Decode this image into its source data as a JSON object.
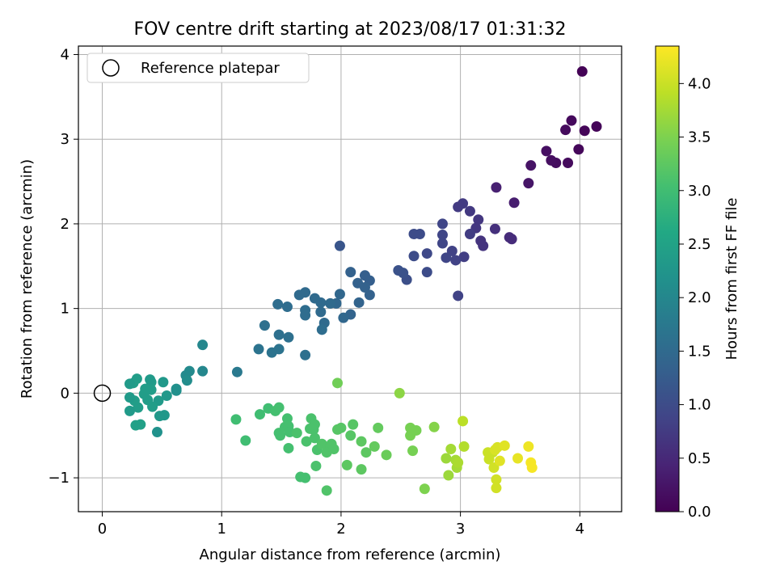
{
  "chart_data": {
    "type": "scatter",
    "title": "FOV centre drift starting at 2023/08/17 01:31:32",
    "xlabel": "Angular distance from reference (arcmin)",
    "ylabel": "Rotation from reference (arcmin)",
    "xlim": [
      -0.2,
      4.35
    ],
    "ylim": [
      -1.4,
      4.1
    ],
    "x_ticks": [
      0,
      1,
      2,
      3,
      4
    ],
    "y_ticks": [
      -1,
      0,
      1,
      2,
      3,
      4
    ],
    "x_tick_labels": [
      "0",
      "1",
      "2",
      "3",
      "4"
    ],
    "y_tick_labels": [
      "−1",
      "0",
      "1",
      "2",
      "3",
      "4"
    ],
    "grid": true,
    "legend": {
      "position": "top-left",
      "label": "Reference platepar"
    },
    "reference_point": {
      "x": 0,
      "y": 0
    },
    "colorbar": {
      "label": "Hours from first FF file",
      "colormap": "viridis",
      "range": [
        0.0,
        4.35
      ],
      "ticks": [
        0.0,
        0.5,
        1.0,
        1.5,
        2.0,
        2.5,
        3.0,
        3.5,
        4.0
      ],
      "tick_labels": [
        "0.0",
        "0.5",
        "1.0",
        "1.5",
        "2.0",
        "2.5",
        "3.0",
        "3.5",
        "4.0"
      ]
    },
    "points": [
      {
        "x": 4.02,
        "y": 3.8,
        "h": 0.03
      },
      {
        "x": 4.14,
        "y": 3.15,
        "h": 0.05
      },
      {
        "x": 4.04,
        "y": 3.1,
        "h": 0.05
      },
      {
        "x": 3.99,
        "y": 2.88,
        "h": 0.08
      },
      {
        "x": 3.93,
        "y": 3.22,
        "h": 0.1
      },
      {
        "x": 3.88,
        "y": 3.11,
        "h": 0.12
      },
      {
        "x": 3.9,
        "y": 2.72,
        "h": 0.12
      },
      {
        "x": 3.8,
        "y": 2.72,
        "h": 0.15
      },
      {
        "x": 3.76,
        "y": 2.75,
        "h": 0.17
      },
      {
        "x": 3.72,
        "y": 2.86,
        "h": 0.18
      },
      {
        "x": 3.59,
        "y": 2.69,
        "h": 0.22
      },
      {
        "x": 3.57,
        "y": 2.48,
        "h": 0.25
      },
      {
        "x": 3.45,
        "y": 2.25,
        "h": 0.35
      },
      {
        "x": 3.3,
        "y": 2.43,
        "h": 0.4
      },
      {
        "x": 3.43,
        "y": 1.82,
        "h": 0.55
      },
      {
        "x": 3.41,
        "y": 1.84,
        "h": 0.55
      },
      {
        "x": 3.29,
        "y": 1.94,
        "h": 0.6
      },
      {
        "x": 3.19,
        "y": 1.74,
        "h": 0.65
      },
      {
        "x": 3.17,
        "y": 1.8,
        "h": 0.65
      },
      {
        "x": 3.15,
        "y": 2.05,
        "h": 0.7
      },
      {
        "x": 3.13,
        "y": 1.95,
        "h": 0.7
      },
      {
        "x": 3.08,
        "y": 2.15,
        "h": 0.72
      },
      {
        "x": 3.02,
        "y": 2.24,
        "h": 0.75
      },
      {
        "x": 2.98,
        "y": 2.2,
        "h": 0.75
      },
      {
        "x": 3.08,
        "y": 1.88,
        "h": 0.78
      },
      {
        "x": 3.03,
        "y": 1.61,
        "h": 0.8
      },
      {
        "x": 2.98,
        "y": 1.15,
        "h": 0.85
      },
      {
        "x": 2.96,
        "y": 1.57,
        "h": 0.85
      },
      {
        "x": 2.93,
        "y": 1.68,
        "h": 0.85
      },
      {
        "x": 2.88,
        "y": 1.6,
        "h": 0.9
      },
      {
        "x": 2.85,
        "y": 1.77,
        "h": 0.9
      },
      {
        "x": 2.85,
        "y": 1.87,
        "h": 0.9
      },
      {
        "x": 2.85,
        "y": 2.0,
        "h": 0.9
      },
      {
        "x": 2.72,
        "y": 1.65,
        "h": 0.95
      },
      {
        "x": 2.72,
        "y": 1.43,
        "h": 1.0
      },
      {
        "x": 2.66,
        "y": 1.88,
        "h": 1.0
      },
      {
        "x": 2.61,
        "y": 1.88,
        "h": 1.0
      },
      {
        "x": 2.61,
        "y": 1.62,
        "h": 1.0
      },
      {
        "x": 2.55,
        "y": 1.34,
        "h": 1.05
      },
      {
        "x": 2.52,
        "y": 1.42,
        "h": 1.1
      },
      {
        "x": 2.48,
        "y": 1.45,
        "h": 1.1
      },
      {
        "x": 2.24,
        "y": 1.33,
        "h": 1.3
      },
      {
        "x": 2.2,
        "y": 1.39,
        "h": 1.3
      },
      {
        "x": 2.24,
        "y": 1.16,
        "h": 1.35
      },
      {
        "x": 2.2,
        "y": 1.25,
        "h": 1.35
      },
      {
        "x": 2.14,
        "y": 1.3,
        "h": 1.35
      },
      {
        "x": 2.15,
        "y": 1.07,
        "h": 1.4
      },
      {
        "x": 2.08,
        "y": 0.93,
        "h": 1.4
      },
      {
        "x": 2.02,
        "y": 0.89,
        "h": 1.45
      },
      {
        "x": 2.08,
        "y": 1.43,
        "h": 1.35
      },
      {
        "x": 1.99,
        "y": 1.74,
        "h": 1.15
      },
      {
        "x": 1.99,
        "y": 1.17,
        "h": 1.45
      },
      {
        "x": 1.96,
        "y": 1.06,
        "h": 1.45
      },
      {
        "x": 1.91,
        "y": 1.06,
        "h": 1.5
      },
      {
        "x": 1.86,
        "y": 0.83,
        "h": 1.5
      },
      {
        "x": 1.84,
        "y": 0.75,
        "h": 1.55
      },
      {
        "x": 1.83,
        "y": 0.96,
        "h": 1.5
      },
      {
        "x": 1.83,
        "y": 1.07,
        "h": 1.5
      },
      {
        "x": 1.78,
        "y": 1.12,
        "h": 1.5
      },
      {
        "x": 1.7,
        "y": 1.19,
        "h": 1.5
      },
      {
        "x": 1.65,
        "y": 1.16,
        "h": 1.5
      },
      {
        "x": 1.7,
        "y": 0.98,
        "h": 1.55
      },
      {
        "x": 1.7,
        "y": 0.92,
        "h": 1.55
      },
      {
        "x": 1.7,
        "y": 0.45,
        "h": 1.6
      },
      {
        "x": 1.55,
        "y": 1.02,
        "h": 1.55
      },
      {
        "x": 1.47,
        "y": 1.05,
        "h": 1.55
      },
      {
        "x": 1.56,
        "y": 0.66,
        "h": 1.6
      },
      {
        "x": 1.48,
        "y": 0.69,
        "h": 1.6
      },
      {
        "x": 1.48,
        "y": 0.52,
        "h": 1.65
      },
      {
        "x": 1.42,
        "y": 0.48,
        "h": 1.65
      },
      {
        "x": 1.36,
        "y": 0.8,
        "h": 1.6
      },
      {
        "x": 1.31,
        "y": 0.52,
        "h": 1.65
      },
      {
        "x": 1.13,
        "y": 0.25,
        "h": 1.75
      },
      {
        "x": 0.84,
        "y": 0.57,
        "h": 2.0
      },
      {
        "x": 0.84,
        "y": 0.26,
        "h": 2.0
      },
      {
        "x": 0.73,
        "y": 0.26,
        "h": 2.05
      },
      {
        "x": 0.7,
        "y": 0.21,
        "h": 2.05
      },
      {
        "x": 0.71,
        "y": 0.15,
        "h": 2.1
      },
      {
        "x": 0.62,
        "y": 0.05,
        "h": 2.15
      },
      {
        "x": 0.62,
        "y": 0.03,
        "h": 2.15
      },
      {
        "x": 0.51,
        "y": 0.13,
        "h": 2.3
      },
      {
        "x": 0.54,
        "y": -0.03,
        "h": 2.3
      },
      {
        "x": 0.52,
        "y": -0.26,
        "h": 2.3
      },
      {
        "x": 0.48,
        "y": -0.27,
        "h": 2.3
      },
      {
        "x": 0.47,
        "y": -0.09,
        "h": 2.35
      },
      {
        "x": 0.46,
        "y": -0.46,
        "h": 2.2
      },
      {
        "x": 0.42,
        "y": -0.16,
        "h": 2.4
      },
      {
        "x": 0.41,
        "y": 0.13,
        "h": 2.4
      },
      {
        "x": 0.41,
        "y": 0.04,
        "h": 2.4
      },
      {
        "x": 0.4,
        "y": 0.16,
        "h": 2.35
      },
      {
        "x": 0.38,
        "y": -0.08,
        "h": 2.4
      },
      {
        "x": 0.36,
        "y": 0.05,
        "h": 2.4
      },
      {
        "x": 0.35,
        "y": -0.01,
        "h": 2.4
      },
      {
        "x": 0.32,
        "y": -0.37,
        "h": 2.45
      },
      {
        "x": 0.3,
        "y": -0.17,
        "h": 2.4
      },
      {
        "x": 0.29,
        "y": 0.17,
        "h": 2.4
      },
      {
        "x": 0.28,
        "y": -0.38,
        "h": 2.45
      },
      {
        "x": 0.27,
        "y": -0.09,
        "h": 2.4
      },
      {
        "x": 0.26,
        "y": 0.12,
        "h": 2.4
      },
      {
        "x": 0.23,
        "y": -0.05,
        "h": 2.35
      },
      {
        "x": 0.23,
        "y": 0.11,
        "h": 2.35
      },
      {
        "x": 0.23,
        "y": -0.21,
        "h": 2.35
      },
      {
        "x": 1.97,
        "y": 0.12,
        "h": 3.4
      },
      {
        "x": 2.49,
        "y": 0.0,
        "h": 3.6
      },
      {
        "x": 1.12,
        "y": -0.31,
        "h": 3.0
      },
      {
        "x": 1.2,
        "y": -0.56,
        "h": 3.0
      },
      {
        "x": 1.32,
        "y": -0.25,
        "h": 3.0
      },
      {
        "x": 1.39,
        "y": -0.18,
        "h": 3.0
      },
      {
        "x": 1.45,
        "y": -0.21,
        "h": 3.05
      },
      {
        "x": 1.48,
        "y": -0.17,
        "h": 3.05
      },
      {
        "x": 1.48,
        "y": -0.47,
        "h": 3.05
      },
      {
        "x": 1.49,
        "y": -0.5,
        "h": 3.05
      },
      {
        "x": 1.53,
        "y": -0.4,
        "h": 3.05
      },
      {
        "x": 1.55,
        "y": -0.3,
        "h": 3.05
      },
      {
        "x": 1.56,
        "y": -0.39,
        "h": 3.05
      },
      {
        "x": 1.56,
        "y": -0.65,
        "h": 3.05
      },
      {
        "x": 1.57,
        "y": -0.46,
        "h": 3.05
      },
      {
        "x": 1.63,
        "y": -0.47,
        "h": 3.1
      },
      {
        "x": 1.66,
        "y": -0.99,
        "h": 3.05
      },
      {
        "x": 1.7,
        "y": -1.0,
        "h": 3.05
      },
      {
        "x": 1.71,
        "y": -0.57,
        "h": 3.1
      },
      {
        "x": 1.74,
        "y": -0.42,
        "h": 3.1
      },
      {
        "x": 1.75,
        "y": -0.3,
        "h": 3.1
      },
      {
        "x": 1.77,
        "y": -0.43,
        "h": 3.1
      },
      {
        "x": 1.78,
        "y": -0.37,
        "h": 3.1
      },
      {
        "x": 1.78,
        "y": -0.53,
        "h": 3.1
      },
      {
        "x": 1.79,
        "y": -0.86,
        "h": 3.1
      },
      {
        "x": 1.8,
        "y": -0.67,
        "h": 3.1
      },
      {
        "x": 1.84,
        "y": -0.6,
        "h": 3.15
      },
      {
        "x": 1.88,
        "y": -1.15,
        "h": 3.15
      },
      {
        "x": 1.88,
        "y": -0.7,
        "h": 3.15
      },
      {
        "x": 1.91,
        "y": -0.63,
        "h": 3.15
      },
      {
        "x": 1.92,
        "y": -0.6,
        "h": 3.15
      },
      {
        "x": 1.94,
        "y": -0.66,
        "h": 3.15
      },
      {
        "x": 1.97,
        "y": -0.43,
        "h": 3.2
      },
      {
        "x": 2.0,
        "y": -0.41,
        "h": 3.2
      },
      {
        "x": 2.05,
        "y": -0.85,
        "h": 3.25
      },
      {
        "x": 2.08,
        "y": -0.5,
        "h": 3.2
      },
      {
        "x": 2.1,
        "y": -0.37,
        "h": 3.2
      },
      {
        "x": 2.17,
        "y": -0.9,
        "h": 3.25
      },
      {
        "x": 2.17,
        "y": -0.57,
        "h": 3.25
      },
      {
        "x": 2.21,
        "y": -0.7,
        "h": 3.25
      },
      {
        "x": 2.28,
        "y": -0.63,
        "h": 3.3
      },
      {
        "x": 2.31,
        "y": -0.41,
        "h": 3.3
      },
      {
        "x": 2.38,
        "y": -0.73,
        "h": 3.35
      },
      {
        "x": 2.58,
        "y": -0.5,
        "h": 3.45
      },
      {
        "x": 2.58,
        "y": -0.41,
        "h": 3.45
      },
      {
        "x": 2.6,
        "y": -0.68,
        "h": 3.45
      },
      {
        "x": 2.63,
        "y": -0.44,
        "h": 3.45
      },
      {
        "x": 2.7,
        "y": -1.13,
        "h": 3.5
      },
      {
        "x": 2.78,
        "y": -0.4,
        "h": 3.55
      },
      {
        "x": 2.88,
        "y": -0.77,
        "h": 3.7
      },
      {
        "x": 2.9,
        "y": -0.97,
        "h": 3.7
      },
      {
        "x": 2.92,
        "y": -0.66,
        "h": 3.75
      },
      {
        "x": 2.96,
        "y": -0.79,
        "h": 3.75
      },
      {
        "x": 2.97,
        "y": -0.88,
        "h": 3.75
      },
      {
        "x": 2.98,
        "y": -0.82,
        "h": 3.8
      },
      {
        "x": 3.02,
        "y": -0.33,
        "h": 3.9
      },
      {
        "x": 3.03,
        "y": -0.63,
        "h": 3.85
      },
      {
        "x": 3.23,
        "y": -0.7,
        "h": 4.0
      },
      {
        "x": 3.24,
        "y": -0.78,
        "h": 4.0
      },
      {
        "x": 3.27,
        "y": -0.7,
        "h": 4.0
      },
      {
        "x": 3.28,
        "y": -0.88,
        "h": 4.05
      },
      {
        "x": 3.29,
        "y": -0.67,
        "h": 4.1
      },
      {
        "x": 3.3,
        "y": -1.12,
        "h": 4.05
      },
      {
        "x": 3.3,
        "y": -1.02,
        "h": 4.05
      },
      {
        "x": 3.31,
        "y": -0.64,
        "h": 4.1
      },
      {
        "x": 3.33,
        "y": -0.8,
        "h": 4.15
      },
      {
        "x": 3.37,
        "y": -0.62,
        "h": 4.15
      },
      {
        "x": 3.48,
        "y": -0.77,
        "h": 4.2
      },
      {
        "x": 3.57,
        "y": -0.63,
        "h": 4.25
      },
      {
        "x": 3.59,
        "y": -0.82,
        "h": 4.3
      },
      {
        "x": 3.6,
        "y": -0.88,
        "h": 4.3
      }
    ]
  }
}
